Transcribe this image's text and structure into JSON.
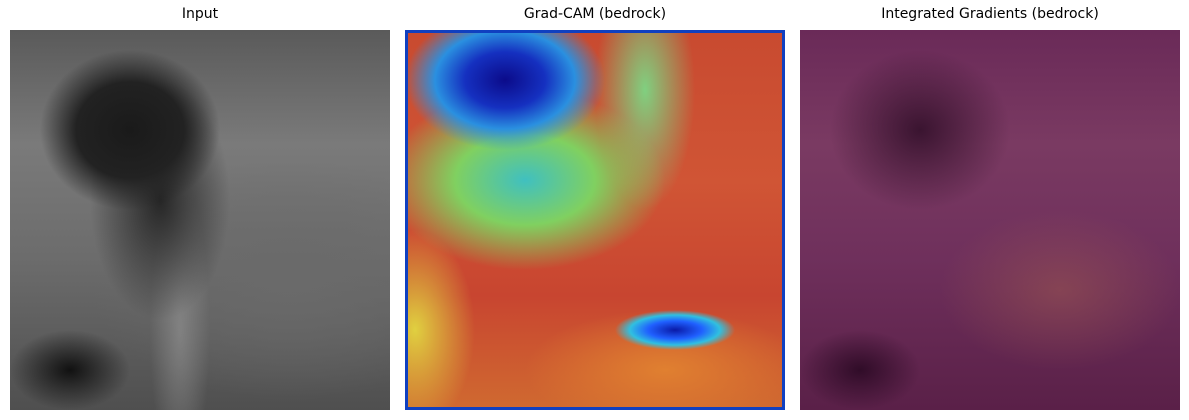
{
  "figure": {
    "panels": [
      {
        "title": "Input",
        "colormap": "gray"
      },
      {
        "title": "Grad-CAM (bedrock)",
        "colormap": "jet"
      },
      {
        "title": "Integrated Gradients (bedrock)",
        "colormap": "magma"
      }
    ]
  }
}
